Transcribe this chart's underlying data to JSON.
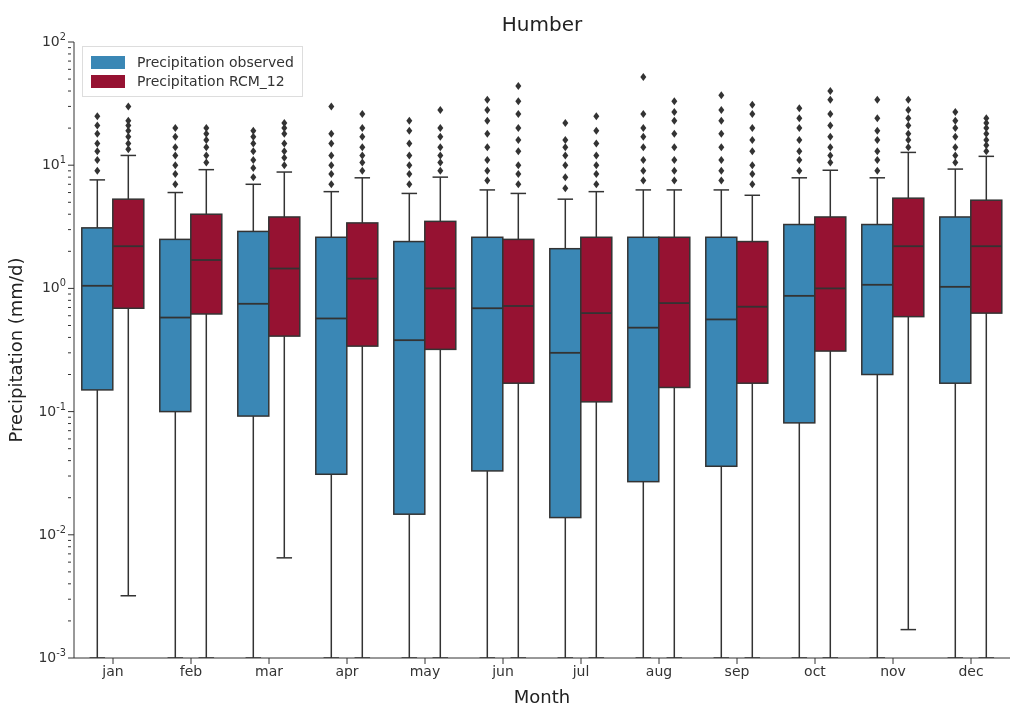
{
  "chart_data": {
    "type": "box",
    "title": "Humber",
    "xlabel": "Month",
    "ylabel": "Precipitation (mm/d)",
    "categories": [
      "jan",
      "feb",
      "mar",
      "apr",
      "may",
      "jun",
      "jul",
      "aug",
      "sep",
      "oct",
      "nov",
      "dec"
    ],
    "log": "y",
    "ylim": [
      0.001,
      100
    ],
    "yticks": [
      {
        "value": 0.001,
        "label": "10$^{-3}$"
      },
      {
        "value": 0.002,
        "label": null
      },
      {
        "value": 0.003,
        "label": null
      },
      {
        "value": 0.004,
        "label": null
      },
      {
        "value": 0.005,
        "label": null
      },
      {
        "value": 0.006,
        "label": null
      },
      {
        "value": 0.007,
        "label": null
      },
      {
        "value": 0.008,
        "label": null
      },
      {
        "value": 0.009,
        "label": null
      },
      {
        "value": 0.01,
        "label": "10$^{-2}$"
      },
      {
        "value": 0.02,
        "label": null
      },
      {
        "value": 0.03,
        "label": null
      },
      {
        "value": 0.04,
        "label": null
      },
      {
        "value": 0.05,
        "label": null
      },
      {
        "value": 0.06,
        "label": null
      },
      {
        "value": 0.07,
        "label": null
      },
      {
        "value": 0.08,
        "label": null
      },
      {
        "value": 0.09,
        "label": null
      },
      {
        "value": 0.1,
        "label": "10$^{-1}$"
      },
      {
        "value": 0.2,
        "label": null
      },
      {
        "value": 0.3,
        "label": null
      },
      {
        "value": 0.4,
        "label": null
      },
      {
        "value": 0.5,
        "label": null
      },
      {
        "value": 0.6,
        "label": null
      },
      {
        "value": 0.7,
        "label": null
      },
      {
        "value": 0.8,
        "label": null
      },
      {
        "value": 0.9,
        "label": null
      },
      {
        "value": 1,
        "label": "10$^{0}$"
      },
      {
        "value": 2,
        "label": null
      },
      {
        "value": 3,
        "label": null
      },
      {
        "value": 4,
        "label": null
      },
      {
        "value": 5,
        "label": null
      },
      {
        "value": 6,
        "label": null
      },
      {
        "value": 7,
        "label": null
      },
      {
        "value": 8,
        "label": null
      },
      {
        "value": 9,
        "label": null
      },
      {
        "value": 10,
        "label": "10$^{1}$"
      },
      {
        "value": 20,
        "label": null
      },
      {
        "value": 30,
        "label": null
      },
      {
        "value": 40,
        "label": null
      },
      {
        "value": 50,
        "label": null
      },
      {
        "value": 60,
        "label": null
      },
      {
        "value": 70,
        "label": null
      },
      {
        "value": 80,
        "label": null
      },
      {
        "value": 90,
        "label": null
      },
      {
        "value": 100,
        "label": "10$^{2}$"
      }
    ],
    "legend": "top left",
    "marker": "diamond",
    "series": [
      {
        "name": "Precipitation observed",
        "color": "#3a87b5",
        "boxes": [
          {
            "low": 0.001,
            "q1": 0.15,
            "median": 1.05,
            "q3": 3.1,
            "high": 7.6,
            "outliers": [
              9,
              11,
              13,
              15,
              18,
              21,
              25
            ]
          },
          {
            "low": 0.001,
            "q1": 0.1,
            "median": 0.58,
            "q3": 2.5,
            "high": 6,
            "outliers": [
              7,
              8.5,
              10,
              12,
              14,
              17,
              20
            ]
          },
          {
            "low": 0.001,
            "q1": 0.092,
            "median": 0.75,
            "q3": 2.9,
            "high": 7,
            "outliers": [
              8,
              9.5,
              11,
              13,
              15,
              17,
              19
            ]
          },
          {
            "low": 0.001,
            "q1": 0.031,
            "median": 0.57,
            "q3": 2.6,
            "high": 6.1,
            "outliers": [
              7,
              8.5,
              10,
              12,
              15,
              18,
              30
            ]
          },
          {
            "low": 0.001,
            "q1": 0.0147,
            "median": 0.38,
            "q3": 2.4,
            "high": 5.9,
            "outliers": [
              7,
              8.5,
              10,
              12,
              15,
              19,
              23
            ]
          },
          {
            "low": 0.001,
            "q1": 0.033,
            "median": 0.69,
            "q3": 2.6,
            "high": 6.3,
            "outliers": [
              7.5,
              9,
              11,
              14,
              18,
              23,
              28,
              34
            ]
          },
          {
            "low": 0.001,
            "q1": 0.0138,
            "median": 0.3,
            "q3": 2.1,
            "high": 5.3,
            "outliers": [
              6.5,
              8,
              10,
              12,
              14,
              16,
              22
            ]
          },
          {
            "low": 0.001,
            "q1": 0.027,
            "median": 0.48,
            "q3": 2.6,
            "high": 6.3,
            "outliers": [
              7.5,
              9,
              11,
              14,
              17,
              20,
              26,
              52
            ]
          },
          {
            "low": 0.001,
            "q1": 0.036,
            "median": 0.56,
            "q3": 2.6,
            "high": 6.3,
            "outliers": [
              7.5,
              9,
              11,
              14,
              18,
              23,
              28,
              37
            ]
          },
          {
            "low": 0.001,
            "q1": 0.081,
            "median": 0.87,
            "q3": 3.3,
            "high": 7.9,
            "outliers": [
              9,
              11,
              13,
              16,
              20,
              24,
              29
            ]
          },
          {
            "low": 0.001,
            "q1": 0.2,
            "median": 1.07,
            "q3": 3.3,
            "high": 7.9,
            "outliers": [
              9,
              11,
              13,
              16,
              19,
              24,
              34
            ]
          },
          {
            "low": 0.001,
            "q1": 0.17,
            "median": 1.03,
            "q3": 3.8,
            "high": 9.3,
            "outliers": [
              10.5,
              12,
              14,
              17,
              20,
              23,
              27
            ]
          }
        ]
      },
      {
        "name": "Precipitation RCM_12",
        "color": "#961232",
        "boxes": [
          {
            "low": 0.0032,
            "q1": 0.69,
            "median": 2.2,
            "q3": 5.3,
            "high": 12,
            "outliers": [
              13.5,
              15,
              17,
              19,
              21,
              23,
              30
            ]
          },
          {
            "low": 0.001,
            "q1": 0.62,
            "median": 1.7,
            "q3": 4,
            "high": 9.2,
            "outliers": [
              10.5,
              12,
              14,
              16,
              18,
              20
            ]
          },
          {
            "low": 0.0065,
            "q1": 0.41,
            "median": 1.45,
            "q3": 3.8,
            "high": 8.8,
            "outliers": [
              10,
              11.5,
              13,
              15,
              18,
              20,
              22
            ]
          },
          {
            "low": 0.001,
            "q1": 0.34,
            "median": 1.2,
            "q3": 3.4,
            "high": 7.9,
            "outliers": [
              9,
              10.5,
              12,
              14,
              17,
              20,
              26
            ]
          },
          {
            "low": 0.001,
            "q1": 0.32,
            "median": 1,
            "q3": 3.5,
            "high": 8,
            "outliers": [
              9,
              10.5,
              12,
              14,
              17,
              20,
              28
            ]
          },
          {
            "low": 0.001,
            "q1": 0.17,
            "median": 0.72,
            "q3": 2.5,
            "high": 5.9,
            "outliers": [
              7,
              8.5,
              10,
              13,
              16,
              20,
              26,
              33,
              44
            ]
          },
          {
            "low": 0.001,
            "q1": 0.12,
            "median": 0.63,
            "q3": 2.6,
            "high": 6.1,
            "outliers": [
              7,
              8.5,
              10,
              12,
              15,
              19,
              25
            ]
          },
          {
            "low": 0.001,
            "q1": 0.157,
            "median": 0.76,
            "q3": 2.6,
            "high": 6.3,
            "outliers": [
              7.5,
              9,
              11,
              14,
              18,
              23,
              27,
              33
            ]
          },
          {
            "low": 0.001,
            "q1": 0.17,
            "median": 0.71,
            "q3": 2.4,
            "high": 5.7,
            "outliers": [
              7,
              8.5,
              10,
              13,
              16,
              20,
              26,
              31
            ]
          },
          {
            "low": 0.001,
            "q1": 0.31,
            "median": 1,
            "q3": 3.8,
            "high": 9.1,
            "outliers": [
              10.5,
              12,
              14,
              17,
              21,
              26,
              34,
              40
            ]
          },
          {
            "low": 0.0017,
            "q1": 0.59,
            "median": 2.2,
            "q3": 5.4,
            "high": 12.7,
            "outliers": [
              14,
              16,
              18,
              21,
              24,
              28,
              34
            ]
          },
          {
            "low": 0.001,
            "q1": 0.63,
            "median": 2.2,
            "q3": 5.2,
            "high": 11.8,
            "outliers": [
              13,
              14.5,
              16,
              18,
              20,
              22,
              24
            ]
          }
        ]
      }
    ]
  }
}
